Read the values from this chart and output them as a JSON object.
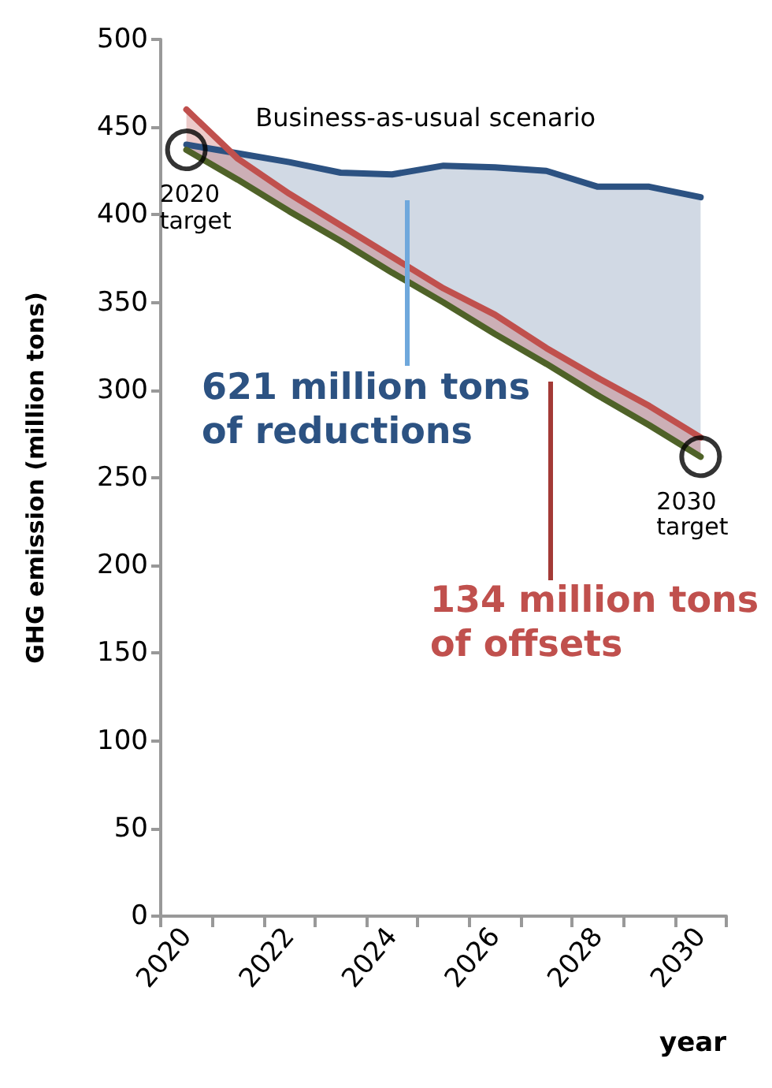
{
  "chart_data": {
    "type": "line",
    "xlabel": "year",
    "ylabel": "GHG emission (million tons)",
    "categories": [
      "2020",
      null,
      "2022",
      null,
      "2024",
      null,
      "2026",
      null,
      "2028",
      null,
      "2030"
    ],
    "ylim": [
      0,
      500
    ],
    "yticks": [
      0,
      50,
      100,
      150,
      200,
      250,
      300,
      350,
      400,
      450,
      500
    ],
    "grid": false,
    "marker": "none",
    "line_style": "solid",
    "series": [
      {
        "type": "area",
        "color": "#2c5282",
        "values": [
          440,
          435,
          430,
          424,
          423,
          428,
          427,
          425,
          416,
          416,
          410
        ]
      },
      {
        "type": "area",
        "color": "#c0504d",
        "values": [
          460,
          432,
          412,
          394,
          376,
          358,
          343,
          324,
          307,
          291,
          273
        ]
      },
      {
        "color": "#4f6228",
        "values": [
          437,
          420,
          402,
          385,
          367,
          350,
          332,
          315,
          297,
          280,
          262
        ]
      },
      {
        "type": "scatter",
        "color": "#000000",
        "marker": "circle",
        "values": [
          437,
          null,
          null,
          null,
          null,
          null,
          null,
          null,
          null,
          null,
          262
        ]
      }
    ],
    "annotations": [
      {
        "text": "Business-as-usual scenario",
        "x": "2026",
        "y": 427
      },
      {
        "text": "2020 target",
        "x": "2020",
        "y": 437
      },
      {
        "text": "2030 target",
        "x": "2030",
        "y": 262
      },
      "621 million tons of reductions",
      "134 million tons of offsets"
    ]
  }
}
